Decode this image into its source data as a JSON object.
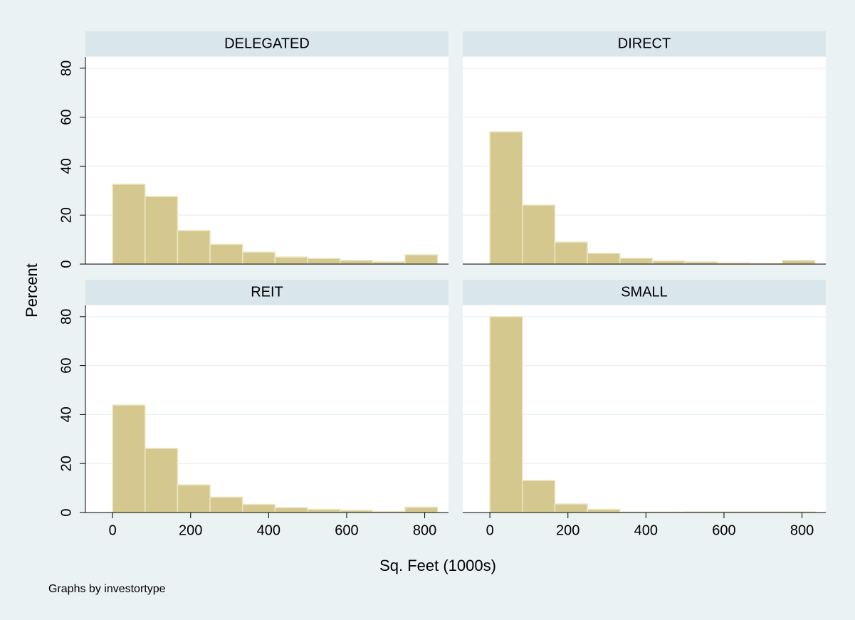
{
  "chart_data": [
    {
      "type": "histogram",
      "title": "DELEGATED",
      "color": "#d4c88e",
      "bins": [
        0,
        83.3,
        166.6,
        249.9,
        333.2,
        416.5,
        499.8,
        583.1,
        666.4,
        749.7,
        833
      ],
      "values": [
        32.6,
        27.6,
        13.7,
        8.1,
        4.9,
        2.9,
        2.3,
        1.5,
        0.9,
        3.8
      ],
      "xlim": [
        -69.6,
        861
      ],
      "ylim": [
        0,
        84.6
      ],
      "yticks": [
        0,
        20,
        40,
        60,
        80
      ],
      "grid": true
    },
    {
      "type": "histogram",
      "title": "DIRECT",
      "color": "#d4c88e",
      "bins": [
        0,
        83.3,
        166.6,
        249.9,
        333.2,
        416.5,
        499.8,
        583.1,
        666.4,
        749.7,
        833
      ],
      "values": [
        54,
        24.1,
        9,
        4.4,
        2.4,
        1.3,
        0.9,
        0.5,
        0.3,
        1.5
      ],
      "xlim": [
        -69.6,
        861
      ],
      "ylim": [
        0,
        84.6
      ],
      "yticks": [
        0,
        20,
        40,
        60,
        80
      ],
      "grid": true
    },
    {
      "type": "histogram",
      "title": "REIT",
      "color": "#d4c88e",
      "bins": [
        0,
        83.3,
        166.6,
        249.9,
        333.2,
        416.5,
        499.8,
        583.1,
        666.4,
        749.7,
        833
      ],
      "values": [
        43.9,
        26.2,
        11.3,
        6.3,
        3.3,
        2,
        1.3,
        0.9,
        0.4,
        2.2
      ],
      "xlim": [
        -69.6,
        861
      ],
      "ylim": [
        0,
        84.6
      ],
      "xticks": [
        0,
        200,
        400,
        600,
        800
      ],
      "yticks": [
        0,
        20,
        40,
        60,
        80
      ],
      "grid": true
    },
    {
      "type": "histogram",
      "title": "SMALL",
      "color": "#d4c88e",
      "bins": [
        0,
        83.3,
        166.6,
        249.9,
        333.2,
        416.5,
        499.8,
        583.1,
        666.4,
        749.7,
        833
      ],
      "values": [
        80,
        13.1,
        3.5,
        1.3,
        0.2,
        0.2,
        0.3,
        0.3,
        0.3,
        0.3
      ],
      "xlim": [
        -69.6,
        861
      ],
      "ylim": [
        0,
        84.6
      ],
      "xticks": [
        0,
        200,
        400,
        600,
        800
      ],
      "yticks": [
        0,
        20,
        40,
        60,
        80
      ],
      "grid": true
    }
  ],
  "y_label": "Percent",
  "x_label": "Sq. Feet (1000s)",
  "note": "Graphs by investortype"
}
